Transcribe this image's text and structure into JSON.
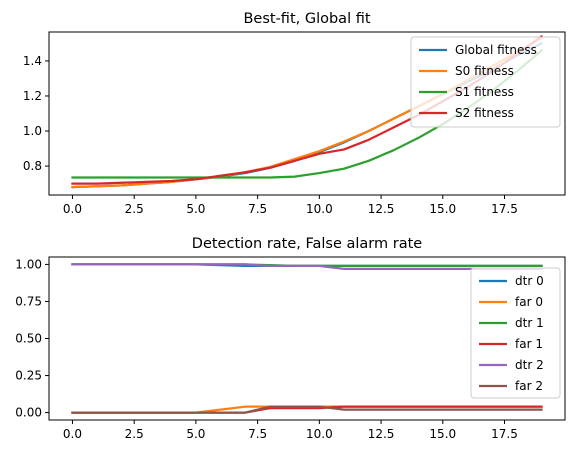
{
  "chart_data": [
    {
      "type": "line",
      "title": "Best-fit, Global fit",
      "xlabel": "",
      "ylabel": "",
      "xlim": [
        -0.95,
        19.95
      ],
      "ylim": [
        0.635,
        1.565
      ],
      "xticks": [
        0,
        2.5,
        5,
        7.5,
        10,
        12.5,
        15,
        17.5
      ],
      "xtick_labels": [
        "0.0",
        "2.5",
        "5.0",
        "7.5",
        "10.0",
        "12.5",
        "15.0",
        "17.5"
      ],
      "yticks": [
        0.8,
        1.0,
        1.2,
        1.4
      ],
      "ytick_labels": [
        "0.8",
        "1.0",
        "1.2",
        "1.4"
      ],
      "grid": false,
      "legend_position": "top-right",
      "x": [
        0,
        1,
        2,
        3,
        4,
        5,
        6,
        7,
        8,
        9,
        10,
        11,
        12,
        13,
        14,
        15,
        16,
        17,
        18,
        19
      ],
      "series": [
        {
          "name": "Global fitness",
          "color": "#1f77b4",
          "values": [
            0.68,
            0.685,
            0.69,
            0.7,
            0.71,
            0.725,
            0.74,
            0.76,
            0.79,
            0.83,
            0.88,
            0.935,
            1.0,
            1.07,
            1.14,
            1.21,
            1.28,
            1.35,
            1.43,
            1.5
          ]
        },
        {
          "name": "S0 fitness",
          "color": "#ff7f0e",
          "values": [
            0.68,
            0.685,
            0.69,
            0.7,
            0.71,
            0.725,
            0.74,
            0.765,
            0.795,
            0.84,
            0.885,
            0.94,
            1.0,
            1.07,
            1.14,
            1.21,
            1.29,
            1.37,
            1.45,
            1.53
          ]
        },
        {
          "name": "S1 fitness",
          "color": "#2ca02c",
          "values": [
            0.735,
            0.735,
            0.735,
            0.735,
            0.735,
            0.735,
            0.735,
            0.735,
            0.735,
            0.74,
            0.76,
            0.785,
            0.83,
            0.89,
            0.96,
            1.04,
            1.13,
            1.23,
            1.34,
            1.46
          ]
        },
        {
          "name": "S2 fitness",
          "color": "#d62728",
          "values": [
            0.7,
            0.7,
            0.705,
            0.71,
            0.715,
            0.725,
            0.745,
            0.765,
            0.79,
            0.83,
            0.87,
            0.895,
            0.95,
            1.02,
            1.09,
            1.17,
            1.25,
            1.34,
            1.44,
            1.54
          ]
        }
      ]
    },
    {
      "type": "line",
      "title": "Detection rate, False alarm rate",
      "xlabel": "",
      "ylabel": "",
      "xlim": [
        -0.95,
        19.95
      ],
      "ylim": [
        -0.05,
        1.05
      ],
      "xticks": [
        0,
        2.5,
        5,
        7.5,
        10,
        12.5,
        15,
        17.5
      ],
      "xtick_labels": [
        "0.0",
        "2.5",
        "5.0",
        "7.5",
        "10.0",
        "12.5",
        "15.0",
        "17.5"
      ],
      "yticks": [
        0,
        0.25,
        0.5,
        0.75,
        1.0
      ],
      "ytick_labels": [
        "0.00",
        "0.25",
        "0.50",
        "0.75",
        "1.00"
      ],
      "grid": false,
      "legend_position": "right",
      "x": [
        0,
        1,
        2,
        3,
        4,
        5,
        6,
        7,
        8,
        9,
        10,
        11,
        12,
        13,
        14,
        15,
        16,
        17,
        18,
        19
      ],
      "series": [
        {
          "name": "dtr 0",
          "color": "#1f77b4",
          "values": [
            1.0,
            1.0,
            1.0,
            1.0,
            1.0,
            1.0,
            0.995,
            0.99,
            0.99,
            0.99,
            0.99,
            0.99,
            0.99,
            0.99,
            0.99,
            0.99,
            0.99,
            0.99,
            0.99,
            0.99
          ]
        },
        {
          "name": "far 0",
          "color": "#ff7f0e",
          "values": [
            0.0,
            0.0,
            0.0,
            0.0,
            0.0,
            0.0,
            0.02,
            0.04,
            0.04,
            0.04,
            0.04,
            0.04,
            0.04,
            0.04,
            0.04,
            0.04,
            0.04,
            0.04,
            0.04,
            0.04
          ]
        },
        {
          "name": "dtr 1",
          "color": "#2ca02c",
          "values": [
            1.0,
            1.0,
            1.0,
            1.0,
            1.0,
            1.0,
            1.0,
            1.0,
            0.995,
            0.99,
            0.99,
            0.99,
            0.99,
            0.99,
            0.99,
            0.99,
            0.99,
            0.99,
            0.99,
            0.99
          ]
        },
        {
          "name": "far 1",
          "color": "#d62728",
          "values": [
            0.0,
            0.0,
            0.0,
            0.0,
            0.0,
            0.0,
            0.0,
            0.0,
            0.03,
            0.03,
            0.03,
            0.04,
            0.04,
            0.04,
            0.04,
            0.04,
            0.04,
            0.04,
            0.04,
            0.04
          ]
        },
        {
          "name": "dtr 2",
          "color": "#9467bd",
          "values": [
            1.0,
            1.0,
            1.0,
            1.0,
            1.0,
            1.0,
            1.0,
            1.0,
            0.99,
            0.99,
            0.99,
            0.97,
            0.97,
            0.97,
            0.97,
            0.97,
            0.97,
            0.97,
            0.97,
            0.97
          ]
        },
        {
          "name": "far 2",
          "color": "#8c564b",
          "values": [
            0.0,
            0.0,
            0.0,
            0.0,
            0.0,
            0.0,
            0.0,
            0.0,
            0.04,
            0.04,
            0.04,
            0.02,
            0.02,
            0.02,
            0.02,
            0.02,
            0.02,
            0.02,
            0.02,
            0.02
          ]
        }
      ]
    }
  ]
}
